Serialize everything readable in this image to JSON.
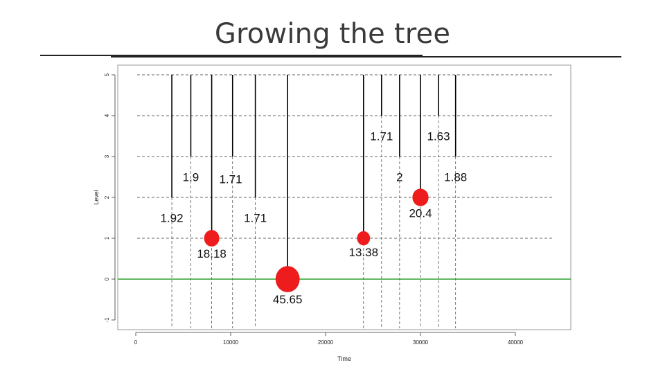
{
  "slide": {
    "title": "Growing the tree"
  },
  "chart_data": {
    "type": "scatter",
    "title": "",
    "xlabel": "Time",
    "ylabel": "Level",
    "xlim": [
      -200,
      45000
    ],
    "ylim": [
      -1.3,
      5.1
    ],
    "x_ticks": [
      0,
      10000,
      20000,
      30000,
      40000
    ],
    "x_tick_labels": [
      "0",
      "10000",
      "20000",
      "30000",
      "40000"
    ],
    "y_ticks": [
      -1,
      0,
      1,
      2,
      3,
      4,
      5
    ],
    "y_tick_labels": [
      "-1",
      "0",
      "1",
      "2",
      "3",
      "4",
      "5"
    ],
    "grid": "dashed horizontal at levels 1-5",
    "baseline": {
      "y": 0,
      "color": "#2ca02c"
    },
    "colors": {
      "node": "#ee1c1c",
      "line": "#000000",
      "dashed": "#555555"
    },
    "nodes": [
      {
        "x": 16000,
        "y": 0,
        "value": 45.65,
        "label": "45.65"
      },
      {
        "x": 8000,
        "y": 1,
        "value": 18.18,
        "label": "18.18"
      },
      {
        "x": 24000,
        "y": 1,
        "value": 13.38,
        "label": "13.38"
      },
      {
        "x": 30000,
        "y": 2,
        "value": 20.4,
        "label": "20.4"
      }
    ],
    "stems": [
      {
        "x": 3800,
        "y_bottom": 2,
        "y_top": 5
      },
      {
        "x": 5800,
        "y_bottom": 3,
        "y_top": 5
      },
      {
        "x": 8000,
        "y_bottom": 1,
        "y_top": 5
      },
      {
        "x": 10200,
        "y_bottom": 3,
        "y_top": 5
      },
      {
        "x": 12600,
        "y_bottom": 2,
        "y_top": 5
      },
      {
        "x": 16000,
        "y_bottom": 0,
        "y_top": 5
      },
      {
        "x": 24000,
        "y_bottom": 1,
        "y_top": 5
      },
      {
        "x": 25900,
        "y_bottom": 4,
        "y_top": 5
      },
      {
        "x": 27800,
        "y_bottom": 3,
        "y_top": 5
      },
      {
        "x": 30000,
        "y_bottom": 2,
        "y_top": 5
      },
      {
        "x": 31900,
        "y_bottom": 4,
        "y_top": 5
      },
      {
        "x": 33700,
        "y_bottom": 3,
        "y_top": 5
      }
    ],
    "drop_lines_x": [
      3800,
      5800,
      8000,
      10200,
      12600,
      24000,
      25900,
      27800,
      30000,
      31900,
      33700
    ],
    "annotations": [
      {
        "x": 5800,
        "y": 2.5,
        "text": "1.9"
      },
      {
        "x": 10000,
        "y": 2.45,
        "text": "1.71"
      },
      {
        "x": 3800,
        "y": 1.5,
        "text": "1.92"
      },
      {
        "x": 12600,
        "y": 1.5,
        "text": "1.71"
      },
      {
        "x": 25900,
        "y": 3.5,
        "text": "1.71"
      },
      {
        "x": 31900,
        "y": 3.5,
        "text": "1.63"
      },
      {
        "x": 27800,
        "y": 2.5,
        "text": "2"
      },
      {
        "x": 33700,
        "y": 2.5,
        "text": "1.88"
      }
    ]
  }
}
